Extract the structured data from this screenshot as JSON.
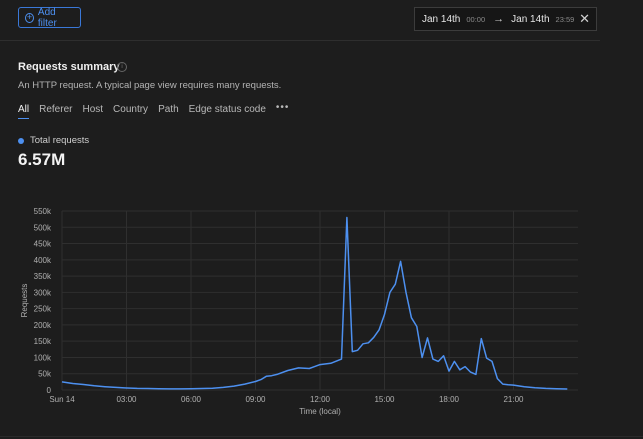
{
  "filters": {
    "add_filter_label": "Add filter"
  },
  "date_range": {
    "start_date": "Jan 14th",
    "start_time": "00:00",
    "end_date": "Jan 14th",
    "end_time": "23:59"
  },
  "summary": {
    "title": "Requests summary",
    "description": "An HTTP request. A typical page view requires many requests.",
    "tabs": [
      "All",
      "Referer",
      "Host",
      "Country",
      "Path",
      "Edge status code"
    ],
    "active_tab": "All",
    "legend_label": "Total requests",
    "total_value": "6.57M"
  },
  "colors": {
    "accent": "#4d90f0",
    "background": "#1d1d1d"
  },
  "chart_data": {
    "type": "line",
    "xlabel": "Time (local)",
    "ylabel": "Requests",
    "x_tick_labels": [
      "Sun 14",
      "03:00",
      "06:00",
      "09:00",
      "12:00",
      "15:00",
      "18:00",
      "21:00"
    ],
    "y_tick_labels": [
      "0",
      "50k",
      "100k",
      "150k",
      "200k",
      "250k",
      "300k",
      "350k",
      "400k",
      "450k",
      "500k",
      "550k"
    ],
    "ylim": [
      0,
      550000
    ],
    "xlim_hours": [
      0,
      24
    ],
    "grid": true,
    "series": [
      {
        "name": "Total requests",
        "x_hours": [
          0,
          0.5,
          1,
          1.5,
          2,
          2.5,
          3,
          3.5,
          4,
          4.5,
          5,
          5.5,
          6,
          6.5,
          7,
          7.5,
          8,
          8.5,
          9,
          9.25,
          9.5,
          9.75,
          10,
          10.5,
          11,
          11.5,
          11.75,
          12,
          12.5,
          13,
          13.25,
          13.5,
          13.75,
          14,
          14.25,
          14.5,
          14.75,
          15,
          15.25,
          15.5,
          15.75,
          16,
          16.25,
          16.5,
          16.75,
          17,
          17.25,
          17.5,
          17.75,
          18,
          18.25,
          18.5,
          18.75,
          19,
          19.25,
          19.5,
          19.75,
          20,
          20.25,
          20.5,
          20.75,
          21,
          21.5,
          22,
          22.5,
          23,
          23.5
        ],
        "values": [
          25000,
          20000,
          17000,
          13000,
          10000,
          8000,
          6000,
          5000,
          4500,
          4000,
          3500,
          3500,
          4000,
          4500,
          5500,
          8000,
          12000,
          18000,
          26000,
          32000,
          42000,
          44000,
          48000,
          60000,
          68000,
          66000,
          72000,
          78000,
          82000,
          95000,
          530000,
          118000,
          122000,
          142000,
          145000,
          162000,
          185000,
          232000,
          300000,
          325000,
          395000,
          300000,
          222000,
          195000,
          100000,
          160000,
          95000,
          88000,
          105000,
          58000,
          88000,
          62000,
          72000,
          55000,
          48000,
          158000,
          98000,
          88000,
          35000,
          18000,
          16000,
          15000,
          10000,
          7000,
          5000,
          4000,
          3000
        ]
      }
    ]
  }
}
